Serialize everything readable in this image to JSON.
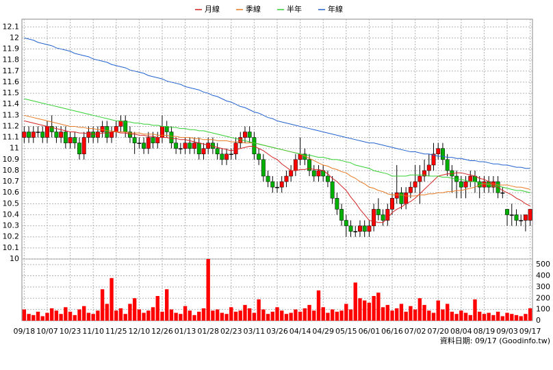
{
  "chart_data": {
    "type": "candlestick",
    "legend_position": "top",
    "grid": true,
    "colors": {
      "up": "#ff0000",
      "down": "#00b000",
      "wick": "#000000"
    },
    "categories": [
      "09/18",
      null,
      null,
      null,
      null,
      "10/07",
      null,
      null,
      null,
      null,
      "10/23",
      null,
      null,
      null,
      null,
      "11/10",
      null,
      null,
      null,
      null,
      "11/25",
      null,
      null,
      null,
      null,
      "12/10",
      null,
      null,
      null,
      null,
      "12/26",
      null,
      null,
      null,
      null,
      "01/13",
      null,
      null,
      null,
      null,
      "01/28",
      null,
      null,
      null,
      null,
      "02/23",
      null,
      null,
      null,
      null,
      "03/11",
      null,
      null,
      null,
      null,
      "03/26",
      null,
      null,
      null,
      null,
      "04/14",
      null,
      null,
      null,
      null,
      "04/29",
      null,
      null,
      null,
      null,
      "05/15",
      null,
      null,
      null,
      null,
      "06/01",
      null,
      null,
      null,
      null,
      "06/16",
      null,
      null,
      null,
      null,
      "07/02",
      null,
      null,
      null,
      null,
      "07/20",
      null,
      null,
      null,
      null,
      "08/04",
      null,
      null,
      null,
      null,
      "08/19",
      null,
      null,
      null,
      null,
      "09/03",
      null,
      null,
      null,
      null,
      "09/17"
    ],
    "open": [
      11.1,
      11.15,
      11.1,
      11.15,
      11.15,
      11.1,
      11.2,
      11.15,
      11.1,
      11.15,
      11.05,
      11.1,
      11.05,
      10.95,
      11.1,
      11.15,
      11.1,
      11.15,
      11.2,
      11.1,
      11.15,
      11.2,
      11.25,
      11.15,
      11.1,
      11.05,
      11.05,
      11.0,
      11.1,
      11.05,
      11.1,
      11.2,
      11.15,
      11.05,
      11.0,
      11.0,
      11.05,
      11.0,
      11.05,
      10.95,
      11.0,
      11.05,
      11.0,
      10.95,
      10.9,
      10.95,
      10.95,
      11.05,
      11.1,
      11.15,
      11.1,
      10.95,
      10.9,
      10.75,
      10.7,
      10.65,
      10.65,
      10.7,
      10.75,
      10.8,
      10.9,
      10.95,
      10.9,
      10.8,
      10.75,
      10.8,
      10.75,
      10.7,
      10.55,
      10.45,
      10.35,
      10.3,
      10.25,
      10.25,
      10.3,
      10.25,
      10.3,
      10.45,
      10.4,
      10.35,
      10.45,
      10.55,
      10.6,
      10.5,
      10.6,
      10.65,
      10.7,
      10.75,
      10.8,
      10.85,
      10.95,
      11.0,
      10.9,
      10.8,
      10.75,
      10.7,
      10.65,
      10.7,
      10.75,
      10.7,
      10.65,
      10.7,
      10.65,
      10.7,
      10.6,
      10.45,
      10.4,
      10.4,
      10.35,
      10.35,
      10.35
    ],
    "high": [
      11.2,
      11.2,
      11.2,
      11.2,
      11.2,
      11.25,
      11.3,
      11.2,
      11.2,
      11.2,
      11.15,
      11.15,
      11.1,
      11.15,
      11.2,
      11.2,
      11.2,
      11.25,
      11.25,
      11.2,
      11.25,
      11.3,
      11.3,
      11.2,
      11.15,
      11.1,
      11.1,
      11.15,
      11.15,
      11.15,
      11.3,
      11.25,
      11.2,
      11.1,
      11.05,
      11.1,
      11.1,
      11.1,
      11.1,
      11.05,
      11.1,
      11.1,
      11.05,
      11.0,
      11.0,
      11.0,
      11.1,
      11.15,
      11.2,
      11.2,
      11.15,
      11.0,
      10.95,
      10.8,
      10.75,
      10.7,
      10.75,
      10.8,
      10.85,
      10.95,
      11.1,
      11.0,
      10.95,
      10.85,
      10.85,
      10.85,
      10.8,
      10.75,
      10.6,
      10.5,
      10.4,
      10.35,
      10.3,
      10.35,
      10.35,
      10.35,
      10.5,
      10.55,
      10.45,
      10.5,
      10.6,
      10.85,
      10.65,
      10.65,
      10.7,
      10.85,
      10.85,
      10.9,
      10.95,
      11.05,
      11.05,
      11.05,
      10.95,
      10.85,
      10.8,
      10.75,
      10.75,
      10.8,
      10.8,
      10.75,
      10.75,
      10.75,
      10.75,
      10.75,
      10.65,
      10.45,
      10.5,
      10.45,
      10.4,
      10.4,
      10.45
    ],
    "low": [
      11.05,
      11.05,
      11.05,
      11.1,
      11.05,
      11.05,
      11.1,
      11.05,
      11.05,
      11.0,
      11.0,
      11.0,
      10.9,
      10.9,
      11.05,
      11.05,
      11.05,
      11.1,
      11.05,
      11.05,
      11.1,
      11.15,
      11.1,
      11.05,
      10.95,
      11.0,
      10.95,
      10.95,
      11.0,
      11.0,
      11.05,
      11.1,
      11.0,
      10.95,
      10.95,
      10.95,
      10.95,
      10.95,
      10.9,
      10.9,
      10.95,
      10.95,
      10.9,
      10.85,
      10.85,
      10.9,
      10.9,
      11.0,
      11.05,
      11.05,
      10.9,
      10.85,
      10.7,
      10.65,
      10.6,
      10.6,
      10.6,
      10.65,
      10.7,
      10.75,
      10.85,
      10.85,
      10.75,
      10.7,
      10.7,
      10.7,
      10.65,
      10.5,
      10.4,
      10.3,
      10.2,
      10.2,
      10.2,
      10.2,
      10.2,
      10.2,
      10.25,
      10.35,
      10.3,
      10.3,
      10.4,
      10.5,
      10.45,
      10.45,
      10.55,
      10.6,
      10.5,
      10.7,
      10.75,
      10.8,
      10.9,
      10.85,
      10.75,
      10.6,
      10.55,
      10.55,
      10.55,
      10.65,
      10.6,
      10.55,
      10.6,
      10.6,
      10.6,
      10.55,
      10.55,
      10.3,
      10.3,
      10.3,
      10.3,
      10.25,
      10.3
    ],
    "close": [
      11.15,
      11.1,
      11.15,
      11.15,
      11.1,
      11.2,
      11.15,
      11.1,
      11.15,
      11.05,
      11.1,
      11.05,
      10.95,
      11.1,
      11.15,
      11.1,
      11.15,
      11.2,
      11.1,
      11.15,
      11.2,
      11.25,
      11.15,
      11.1,
      11.05,
      11.05,
      11.0,
      11.1,
      11.05,
      11.1,
      11.2,
      11.15,
      11.05,
      11.0,
      11.0,
      11.05,
      11.0,
      11.05,
      10.95,
      11.0,
      11.05,
      11.0,
      10.95,
      10.9,
      10.95,
      10.95,
      11.05,
      11.1,
      11.15,
      11.1,
      10.95,
      10.9,
      10.75,
      10.7,
      10.65,
      10.65,
      10.7,
      10.75,
      10.8,
      10.9,
      10.95,
      10.9,
      10.8,
      10.75,
      10.8,
      10.75,
      10.7,
      10.55,
      10.45,
      10.35,
      10.3,
      10.25,
      10.25,
      10.3,
      10.25,
      10.3,
      10.45,
      10.4,
      10.35,
      10.45,
      10.55,
      10.6,
      10.5,
      10.6,
      10.65,
      10.7,
      10.75,
      10.8,
      10.85,
      10.95,
      11.0,
      10.9,
      10.8,
      10.75,
      10.7,
      10.65,
      10.7,
      10.75,
      10.7,
      10.65,
      10.7,
      10.65,
      10.7,
      10.6,
      10.6,
      10.4,
      10.4,
      10.35,
      10.35,
      10.4,
      10.45
    ],
    "series": [
      {
        "name": "月線",
        "color": "#d42020",
        "values": [
          11.25,
          11.24,
          11.23,
          11.22,
          11.21,
          11.2,
          11.19,
          11.18,
          11.17,
          11.16,
          11.15,
          11.15,
          11.14,
          11.14,
          11.13,
          11.13,
          11.13,
          11.14,
          11.14,
          11.15,
          11.15,
          11.14,
          11.14,
          11.13,
          11.13,
          11.12,
          11.12,
          11.11,
          11.11,
          11.1,
          11.1,
          11.1,
          11.09,
          11.09,
          11.08,
          11.08,
          11.07,
          11.06,
          11.05,
          11.04,
          11.03,
          11.02,
          11.01,
          11.0,
          10.99,
          10.98,
          10.99,
          11.0,
          11.01,
          11.02,
          11.02,
          11.0,
          10.98,
          10.95,
          10.92,
          10.9,
          10.86,
          10.83,
          10.8,
          10.8,
          10.81,
          10.81,
          10.82,
          10.81,
          10.81,
          10.8,
          10.77,
          10.73,
          10.7,
          10.66,
          10.62,
          10.56,
          10.51,
          10.45,
          10.4,
          10.35,
          10.34,
          10.33,
          10.33,
          10.37,
          10.42,
          10.45,
          10.47,
          10.5,
          10.52,
          10.55,
          10.59,
          10.63,
          10.67,
          10.71,
          10.75,
          10.76,
          10.77,
          10.77,
          10.78,
          10.78,
          10.77,
          10.76,
          10.75,
          10.73,
          10.72,
          10.7,
          10.67,
          10.65,
          10.62,
          10.6,
          10.58,
          10.55,
          10.53,
          10.5,
          10.48
        ]
      },
      {
        "name": "季線",
        "color": "#e87820",
        "values": [
          11.3,
          11.29,
          11.28,
          11.27,
          11.26,
          11.25,
          11.24,
          11.23,
          11.22,
          11.21,
          11.2,
          11.2,
          11.19,
          11.19,
          11.18,
          11.18,
          11.17,
          11.17,
          11.16,
          11.16,
          11.15,
          11.15,
          11.15,
          11.14,
          11.14,
          11.14,
          11.13,
          11.13,
          11.13,
          11.12,
          11.12,
          11.12,
          11.11,
          11.11,
          11.1,
          11.1,
          11.1,
          11.09,
          11.09,
          11.08,
          11.08,
          11.08,
          11.07,
          11.07,
          11.07,
          11.06,
          11.06,
          11.06,
          11.05,
          11.05,
          11.05,
          11.04,
          11.03,
          11.02,
          11.01,
          11.0,
          10.99,
          10.98,
          10.97,
          10.96,
          10.95,
          10.93,
          10.91,
          10.89,
          10.87,
          10.85,
          10.84,
          10.82,
          10.81,
          10.79,
          10.78,
          10.75,
          10.73,
          10.7,
          10.68,
          10.65,
          10.64,
          10.62,
          10.61,
          10.59,
          10.58,
          10.58,
          10.58,
          10.57,
          10.57,
          10.57,
          10.58,
          10.58,
          10.59,
          10.59,
          10.6,
          10.6,
          10.61,
          10.61,
          10.62,
          10.62,
          10.63,
          10.64,
          10.65,
          10.67,
          10.68,
          10.68,
          10.68,
          10.67,
          10.67,
          10.67,
          10.66,
          10.65,
          10.65,
          10.64,
          10.63
        ]
      },
      {
        "name": "半年",
        "color": "#30d030",
        "values": [
          11.45,
          11.44,
          11.43,
          11.42,
          11.41,
          11.4,
          11.39,
          11.38,
          11.37,
          11.36,
          11.35,
          11.34,
          11.33,
          11.32,
          11.31,
          11.3,
          11.29,
          11.28,
          11.27,
          11.26,
          11.25,
          11.25,
          11.24,
          11.24,
          11.23,
          11.23,
          11.22,
          11.22,
          11.21,
          11.21,
          11.2,
          11.2,
          11.19,
          11.19,
          11.18,
          11.18,
          11.17,
          11.17,
          11.16,
          11.16,
          11.15,
          11.14,
          11.13,
          11.12,
          11.11,
          11.1,
          11.09,
          11.08,
          11.07,
          11.06,
          11.05,
          11.04,
          11.03,
          11.02,
          11.01,
          11.0,
          10.99,
          10.98,
          10.97,
          10.96,
          10.95,
          10.94,
          10.94,
          10.93,
          10.92,
          10.92,
          10.91,
          10.9,
          10.9,
          10.89,
          10.88,
          10.87,
          10.85,
          10.84,
          10.83,
          10.82,
          10.8,
          10.79,
          10.78,
          10.77,
          10.75,
          10.75,
          10.75,
          10.75,
          10.76,
          10.76,
          10.76,
          10.76,
          10.75,
          10.75,
          10.75,
          10.74,
          10.74,
          10.73,
          10.72,
          10.72,
          10.71,
          10.7,
          10.7,
          10.69,
          10.68,
          10.67,
          10.66,
          10.66,
          10.65,
          10.64,
          10.63,
          10.62,
          10.62,
          10.61,
          10.6
        ]
      },
      {
        "name": "年線",
        "color": "#2060d0",
        "values": [
          12.0,
          11.99,
          11.98,
          11.96,
          11.95,
          11.94,
          11.93,
          11.91,
          11.9,
          11.89,
          11.88,
          11.86,
          11.85,
          11.84,
          11.83,
          11.81,
          11.8,
          11.79,
          11.78,
          11.76,
          11.75,
          11.74,
          11.73,
          11.71,
          11.7,
          11.69,
          11.68,
          11.66,
          11.65,
          11.64,
          11.63,
          11.61,
          11.6,
          11.59,
          11.58,
          11.56,
          11.55,
          11.54,
          11.53,
          11.51,
          11.5,
          11.48,
          11.47,
          11.45,
          11.43,
          11.42,
          11.4,
          11.38,
          11.37,
          11.35,
          11.33,
          11.32,
          11.3,
          11.28,
          11.27,
          11.25,
          11.24,
          11.23,
          11.22,
          11.21,
          11.2,
          11.19,
          11.18,
          11.17,
          11.16,
          11.15,
          11.14,
          11.13,
          11.12,
          11.11,
          11.1,
          11.09,
          11.08,
          11.07,
          11.06,
          11.05,
          11.05,
          11.04,
          11.03,
          11.02,
          11.01,
          11.0,
          10.99,
          10.98,
          10.97,
          10.97,
          10.96,
          10.95,
          10.95,
          10.94,
          10.93,
          10.93,
          10.92,
          10.92,
          10.91,
          10.91,
          10.9,
          10.89,
          10.89,
          10.88,
          10.88,
          10.87,
          10.86,
          10.86,
          10.85,
          10.85,
          10.84,
          10.83,
          10.83,
          10.82,
          10.82
        ]
      }
    ],
    "ylim": [
      10,
      12.17
    ],
    "yticks": [
      10,
      10.1,
      10.2,
      10.3,
      10.4,
      10.5,
      10.6,
      10.7,
      10.8,
      10.9,
      11,
      11.1,
      11.2,
      11.3,
      11.4,
      11.5,
      11.6,
      11.7,
      11.8,
      11.9,
      12,
      12.1
    ],
    "volume": {
      "color": "#ff0000",
      "ylim": [
        0,
        550
      ],
      "yticks": [
        0,
        100,
        200,
        300,
        400,
        500
      ],
      "values": [
        100,
        60,
        50,
        80,
        40,
        70,
        110,
        90,
        60,
        120,
        80,
        50,
        100,
        130,
        70,
        60,
        90,
        280,
        150,
        380,
        90,
        110,
        60,
        150,
        200,
        100,
        70,
        90,
        120,
        220,
        80,
        280,
        100,
        70,
        60,
        130,
        90,
        50,
        80,
        110,
        550,
        90,
        100,
        70,
        60,
        120,
        80,
        90,
        140,
        110,
        70,
        190,
        100,
        60,
        80,
        120,
        90,
        60,
        70,
        100,
        80,
        110,
        140,
        90,
        270,
        120,
        70,
        100,
        80,
        90,
        150,
        100,
        340,
        200,
        180,
        160,
        220,
        250,
        120,
        140,
        90,
        110,
        150,
        80,
        130,
        100,
        200,
        140,
        90,
        70,
        180,
        100,
        150,
        80,
        60,
        90,
        70,
        50,
        190,
        80,
        60,
        70,
        50,
        80,
        40,
        70,
        60,
        50,
        40,
        60,
        110
      ]
    },
    "footer": "資料日期: 09/17 (Goodinfo.tw)"
  }
}
